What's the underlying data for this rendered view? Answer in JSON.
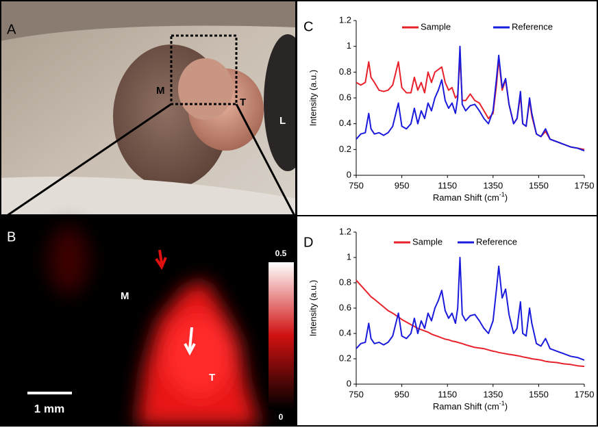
{
  "panel_a": {
    "label": "A",
    "annotations": [
      "M",
      "T",
      "L"
    ]
  },
  "panel_b": {
    "label": "B",
    "annotations": [
      "M",
      "T"
    ],
    "scale_bar": "1 mm",
    "colorbar_max": 0.5,
    "colorbar_min": 0
  },
  "chart_data": [
    {
      "type": "line",
      "panel_label": "C",
      "ylabel": "Intensity (a.u.)",
      "xlabel": "Raman Shift (cm",
      "xlabel_sup": "-1",
      "xlabel_end": ")",
      "xlim": [
        750,
        1750
      ],
      "xticks": [
        750,
        950,
        1150,
        1350,
        1550,
        1750
      ],
      "ylim": [
        0,
        1.2
      ],
      "yticks": [
        0,
        0.2,
        0.4,
        0.6,
        0.8,
        1,
        1.2
      ],
      "x": [
        750,
        770,
        790,
        805,
        815,
        830,
        850,
        870,
        890,
        910,
        935,
        950,
        970,
        990,
        1005,
        1020,
        1035,
        1050,
        1065,
        1080,
        1095,
        1110,
        1125,
        1140,
        1155,
        1170,
        1185,
        1195,
        1205,
        1215,
        1230,
        1250,
        1270,
        1290,
        1310,
        1330,
        1350,
        1365,
        1375,
        1390,
        1405,
        1420,
        1440,
        1455,
        1470,
        1480,
        1495,
        1510,
        1520,
        1540,
        1560,
        1580,
        1600,
        1630,
        1660,
        1690,
        1720,
        1750
      ],
      "series": [
        {
          "name": "Sample",
          "color": "#e8202a",
          "values": [
            0.72,
            0.7,
            0.72,
            0.88,
            0.76,
            0.72,
            0.66,
            0.65,
            0.66,
            0.7,
            0.88,
            0.68,
            0.64,
            0.64,
            0.76,
            0.66,
            0.72,
            0.64,
            0.8,
            0.72,
            0.8,
            0.82,
            0.84,
            0.72,
            0.66,
            0.68,
            0.6,
            0.62,
            0.92,
            0.58,
            0.58,
            0.63,
            0.58,
            0.56,
            0.5,
            0.44,
            0.48,
            0.7,
            0.9,
            0.66,
            0.74,
            0.55,
            0.4,
            0.44,
            0.62,
            0.4,
            0.38,
            0.58,
            0.46,
            0.32,
            0.3,
            0.34,
            0.28,
            0.26,
            0.24,
            0.22,
            0.21,
            0.2
          ]
        },
        {
          "name": "Reference",
          "color": "#1a1adc",
          "values": [
            0.28,
            0.32,
            0.33,
            0.48,
            0.36,
            0.32,
            0.33,
            0.31,
            0.33,
            0.38,
            0.56,
            0.38,
            0.36,
            0.4,
            0.52,
            0.4,
            0.5,
            0.44,
            0.56,
            0.5,
            0.6,
            0.66,
            0.74,
            0.58,
            0.52,
            0.56,
            0.48,
            0.6,
            1.0,
            0.55,
            0.5,
            0.54,
            0.55,
            0.5,
            0.44,
            0.4,
            0.5,
            0.75,
            0.93,
            0.68,
            0.75,
            0.55,
            0.4,
            0.44,
            0.65,
            0.4,
            0.38,
            0.6,
            0.48,
            0.32,
            0.3,
            0.36,
            0.28,
            0.26,
            0.24,
            0.22,
            0.21,
            0.19
          ]
        }
      ]
    },
    {
      "type": "line",
      "panel_label": "D",
      "ylabel": "Intensity (a.u.)",
      "xlabel": "Raman Shift (cm",
      "xlabel_sup": "-1",
      "xlabel_end": ")",
      "xlim": [
        750,
        1750
      ],
      "xticks": [
        750,
        950,
        1150,
        1350,
        1550,
        1750
      ],
      "ylim": [
        0,
        1.2
      ],
      "yticks": [
        0,
        0.2,
        0.4,
        0.6,
        0.8,
        1,
        1.2
      ],
      "x": [
        750,
        770,
        790,
        805,
        815,
        830,
        850,
        870,
        890,
        910,
        935,
        950,
        970,
        990,
        1005,
        1020,
        1035,
        1050,
        1065,
        1080,
        1095,
        1110,
        1125,
        1140,
        1155,
        1170,
        1185,
        1195,
        1205,
        1215,
        1230,
        1250,
        1270,
        1290,
        1310,
        1330,
        1350,
        1365,
        1375,
        1390,
        1405,
        1420,
        1440,
        1455,
        1470,
        1480,
        1495,
        1510,
        1520,
        1540,
        1560,
        1580,
        1600,
        1630,
        1660,
        1690,
        1720,
        1750
      ],
      "series": [
        {
          "name": "Sample",
          "color": "#e8202a",
          "values": [
            0.82,
            0.78,
            0.74,
            0.71,
            0.69,
            0.67,
            0.64,
            0.61,
            0.58,
            0.56,
            0.53,
            0.51,
            0.49,
            0.47,
            0.455,
            0.44,
            0.43,
            0.42,
            0.41,
            0.395,
            0.385,
            0.375,
            0.365,
            0.355,
            0.35,
            0.34,
            0.335,
            0.33,
            0.325,
            0.32,
            0.31,
            0.3,
            0.29,
            0.285,
            0.28,
            0.27,
            0.26,
            0.255,
            0.25,
            0.245,
            0.24,
            0.235,
            0.23,
            0.225,
            0.22,
            0.215,
            0.21,
            0.205,
            0.2,
            0.195,
            0.19,
            0.18,
            0.175,
            0.17,
            0.16,
            0.155,
            0.145,
            0.14
          ]
        },
        {
          "name": "Reference",
          "color": "#1a1adc",
          "values": [
            0.28,
            0.32,
            0.33,
            0.48,
            0.36,
            0.32,
            0.33,
            0.31,
            0.33,
            0.38,
            0.56,
            0.38,
            0.36,
            0.4,
            0.52,
            0.4,
            0.5,
            0.44,
            0.56,
            0.5,
            0.6,
            0.66,
            0.74,
            0.58,
            0.52,
            0.56,
            0.48,
            0.6,
            1.0,
            0.55,
            0.5,
            0.54,
            0.55,
            0.5,
            0.44,
            0.4,
            0.5,
            0.75,
            0.93,
            0.68,
            0.75,
            0.55,
            0.4,
            0.44,
            0.65,
            0.4,
            0.38,
            0.6,
            0.48,
            0.32,
            0.3,
            0.36,
            0.28,
            0.26,
            0.24,
            0.22,
            0.21,
            0.19
          ]
        }
      ]
    }
  ]
}
